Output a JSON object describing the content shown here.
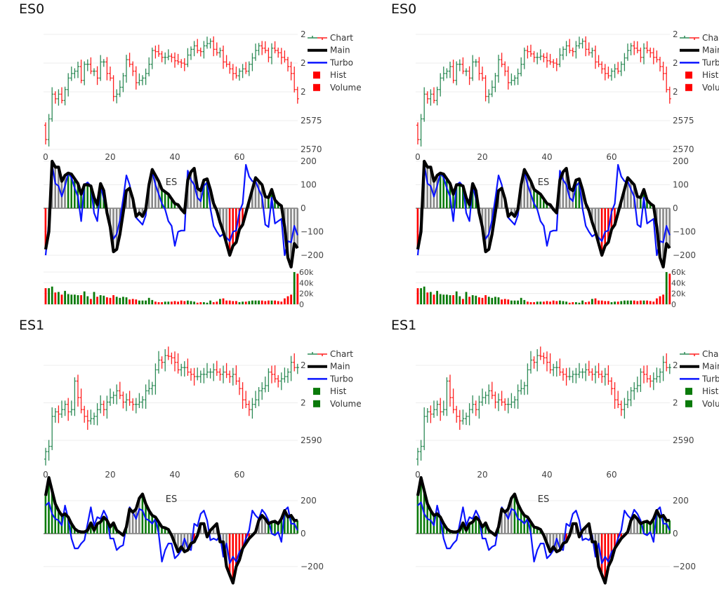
{
  "colors": {
    "up": "#2e8b57",
    "down": "#ff2020",
    "main": "#000000",
    "turbo": "#0a14ff",
    "hist_neutral": "#888888",
    "hist_up": "#0a7a0a",
    "hist_down": "#ff0000",
    "grid": "#eeeeee"
  },
  "charts": [
    {
      "title": "ES0",
      "annotation": "ES",
      "legend": [
        {
          "label": "Chart",
          "icon": "ohlc"
        },
        {
          "label": "Main",
          "icon": "line-black"
        },
        {
          "label": "Turbo",
          "icon": "line-blue"
        },
        {
          "label": "Hist",
          "icon": "square",
          "color": "#ff0000"
        },
        {
          "label": "Volume",
          "icon": "square",
          "color": "#ff0000"
        }
      ],
      "x_ticks": [
        "0",
        "20",
        "40",
        "60"
      ],
      "price": {
        "ylim": [
          2570,
          2590
        ],
        "ticks": [
          {
            "value": 2570,
            "label": "2570"
          },
          {
            "value": 2575,
            "label": "2575"
          },
          {
            "value": 2580,
            "label": "2"
          },
          {
            "value": 2585,
            "label": "2"
          },
          {
            "value": 2590,
            "label": "2"
          }
        ],
        "close": [
          2571.7,
          2575.3,
          2579.6,
          2578.8,
          2579.6,
          2578.5,
          2580.4,
          2582.4,
          2583.2,
          2583.6,
          2584.4,
          2582,
          2584.8,
          2584.8,
          2583.6,
          2583.6,
          2582.4,
          2585.2,
          2585.2,
          2583.2,
          2582.4,
          2579.2,
          2579.6,
          2580.8,
          2582.8,
          2585.6,
          2584.8,
          2583.6,
          2581.6,
          2582,
          2582.4,
          2583.2,
          2584.8,
          2587.2,
          2587,
          2586.6,
          2586,
          2586,
          2586.2,
          2586,
          2585.4,
          2585.2,
          2585,
          2584.8,
          2586.4,
          2587.4,
          2588,
          2587.2,
          2587,
          2588,
          2588.4,
          2588.8,
          2587.4,
          2586.8,
          2587.2,
          2585.2,
          2584.8,
          2584,
          2583.2,
          2582.8,
          2583.6,
          2584,
          2583.6,
          2584.8,
          2585.9,
          2587.2,
          2588,
          2587.6,
          2587.2,
          2586,
          2587.6,
          2587.2,
          2586.8,
          2586,
          2585.6,
          2584.4,
          2583.2,
          2580.4,
          2578.8
        ]
      },
      "oscillator": {
        "ylim": [
          -260,
          205
        ],
        "ticks": [
          {
            "value": 200,
            "label": "200"
          },
          {
            "value": 100,
            "label": "100"
          },
          {
            "value": 0,
            "label": "0"
          },
          {
            "value": -100,
            "label": "−100"
          },
          {
            "value": -200,
            "label": "−200"
          }
        ],
        "main": [
          -175,
          -100,
          200,
          175,
          175,
          115,
          140,
          150,
          145,
          125,
          105,
          60,
          100,
          100,
          95,
          45,
          15,
          105,
          75,
          -20,
          -80,
          -185,
          -175,
          -110,
          -20,
          75,
          85,
          40,
          -35,
          -20,
          -35,
          -5,
          100,
          165,
          140,
          115,
          80,
          70,
          60,
          40,
          20,
          15,
          -5,
          -20,
          120,
          155,
          170,
          85,
          75,
          120,
          125,
          80,
          20,
          -10,
          -60,
          -100,
          -150,
          -200,
          -160,
          -145,
          -90,
          -70,
          -20,
          30,
          80,
          130,
          115,
          100,
          50,
          45,
          80,
          35,
          20,
          10,
          -80,
          -210,
          -250,
          -150,
          -170
        ],
        "turbo": [
          -200,
          -60,
          185,
          105,
          95,
          50,
          95,
          150,
          130,
          85,
          50,
          -55,
          100,
          110,
          95,
          -20,
          -55,
          95,
          40,
          -20,
          -90,
          -130,
          -110,
          -50,
          40,
          140,
          100,
          30,
          -40,
          -55,
          -70,
          -30,
          100,
          155,
          100,
          60,
          20,
          -5,
          -55,
          -75,
          -160,
          -100,
          -95,
          -95,
          160,
          120,
          100,
          45,
          30,
          95,
          110,
          0,
          -75,
          -100,
          -120,
          -110,
          -125,
          -140,
          -100,
          -95,
          -15,
          20,
          185,
          135,
          115,
          115,
          80,
          50,
          -70,
          -80,
          45,
          -65,
          -55,
          -45,
          -200,
          -140,
          -145,
          -75,
          -115
        ],
        "hist_colors": [
          {
            "from": 0,
            "to": 0,
            "color": "red"
          },
          {
            "from": 1,
            "to": 6,
            "color": "gray"
          },
          {
            "from": 7,
            "to": 18,
            "color": "green"
          },
          {
            "from": 19,
            "to": 35,
            "color": "gray"
          },
          {
            "from": 36,
            "to": 40,
            "color": "green"
          },
          {
            "from": 41,
            "to": 48,
            "color": "gray"
          },
          {
            "from": 49,
            "to": 50,
            "color": "green"
          },
          {
            "from": 51,
            "to": 56,
            "color": "gray"
          },
          {
            "from": 57,
            "to": 61,
            "color": "red"
          },
          {
            "from": 62,
            "to": 68,
            "color": "gray"
          },
          {
            "from": 69,
            "to": 72,
            "color": "green"
          },
          {
            "from": 73,
            "to": 78,
            "color": "gray"
          }
        ]
      },
      "volume": {
        "ylim": [
          0,
          60
        ],
        "ticks": [
          {
            "value": 60,
            "label": "60k"
          },
          {
            "value": 40,
            "label": "40k"
          },
          {
            "value": 20,
            "label": "20k"
          },
          {
            "value": 0,
            "label": "0"
          }
        ],
        "values_k": [
          30,
          30,
          33,
          22,
          23,
          18,
          25,
          19,
          18,
          18,
          17,
          17,
          24,
          15,
          10,
          23,
          14,
          17,
          16,
          13,
          12,
          17,
          14,
          12,
          14,
          13,
          9,
          10,
          9,
          7,
          7,
          7,
          12,
          8,
          5,
          4,
          4,
          5,
          5,
          5,
          6,
          5,
          7,
          6,
          7,
          6,
          5,
          3,
          4,
          4,
          3,
          7,
          4,
          5,
          10,
          11,
          7,
          7,
          6,
          6,
          4,
          5,
          5,
          6,
          7,
          7,
          7,
          7,
          6,
          7,
          7,
          7,
          6,
          5,
          11,
          15,
          18,
          60,
          57
        ]
      }
    },
    {
      "title": "ES1",
      "annotation": "ES",
      "legend": [
        {
          "label": "Chart",
          "icon": "ohlc"
        },
        {
          "label": "Main",
          "icon": "line-black"
        },
        {
          "label": "Turbo",
          "icon": "line-blue"
        },
        {
          "label": "Hist",
          "icon": "square",
          "color": "#0a7a0a"
        },
        {
          "label": "Volume",
          "icon": "square",
          "color": "#0a7a0a"
        }
      ],
      "x_ticks": [
        "0",
        "20",
        "40",
        "60"
      ],
      "price": {
        "ylim": [
          2587,
          2602
        ],
        "ticks": [
          {
            "value": 2590,
            "label": "2590"
          },
          {
            "value": 2595,
            "label": "2"
          },
          {
            "value": 2600,
            "label": "2"
          }
        ],
        "close": [
          2588.5,
          2589.2,
          2593.2,
          2593.8,
          2593.5,
          2594.1,
          2594.8,
          2593.8,
          2594.1,
          2597.9,
          2595.7,
          2594.1,
          2593.2,
          2592.6,
          2592.9,
          2593.2,
          2594.1,
          2594.8,
          2594.1,
          2595.1,
          2595.7,
          2596,
          2596.6,
          2596,
          2595.1,
          2595.4,
          2595.1,
          2594.8,
          2594.8,
          2595.1,
          2595.4,
          2596.6,
          2596.9,
          2597.3,
          2599.4,
          2600.7,
          2600.4,
          2601.3,
          2601.2,
          2601,
          2600.4,
          2599.4,
          2599.7,
          2599.7,
          2599.1,
          2598.8,
          2598.5,
          2598.5,
          2598.8,
          2598.8,
          2599.1,
          2599.1,
          2599.4,
          2599.1,
          2598.8,
          2599.1,
          2598.8,
          2598.5,
          2598.8,
          2597.9,
          2596.9,
          2595.4,
          2594.8,
          2594.1,
          2594.8,
          2595.4,
          2596.6,
          2596.9,
          2597.3,
          2599.1,
          2598.8,
          2598.2,
          2597.9,
          2598.2,
          2598.5,
          2599.1,
          2600.4,
          2599.7,
          2599.7
        ]
      },
      "oscillator": {
        "ylim": [
          -310,
          345
        ],
        "ticks": [
          {
            "value": 200,
            "label": "200"
          },
          {
            "value": 0,
            "label": "0"
          },
          {
            "value": -200,
            "label": "−200"
          }
        ],
        "main": [
          230,
          340,
          260,
          180,
          140,
          110,
          120,
          100,
          60,
          30,
          15,
          10,
          10,
          20,
          65,
          20,
          60,
          70,
          100,
          80,
          40,
          65,
          20,
          5,
          -10,
          40,
          150,
          130,
          150,
          215,
          240,
          180,
          140,
          110,
          100,
          70,
          40,
          35,
          25,
          -10,
          -60,
          -110,
          -80,
          -110,
          -100,
          -60,
          -50,
          -10,
          60,
          60,
          -20,
          20,
          40,
          60,
          -50,
          -50,
          -200,
          -250,
          -300,
          -200,
          -160,
          -90,
          -60,
          -30,
          -10,
          10,
          80,
          110,
          90,
          60,
          70,
          75,
          60,
          90,
          140,
          100,
          110,
          80,
          80
        ],
        "turbo": [
          170,
          190,
          120,
          90,
          80,
          50,
          170,
          90,
          -30,
          -90,
          -90,
          -60,
          -40,
          60,
          160,
          50,
          100,
          90,
          140,
          100,
          -30,
          -30,
          -100,
          -80,
          -70,
          50,
          160,
          130,
          90,
          150,
          140,
          90,
          80,
          60,
          90,
          0,
          -170,
          -100,
          -60,
          -60,
          -150,
          -130,
          -100,
          -30,
          -90,
          -100,
          60,
          45,
          120,
          140,
          80,
          -40,
          -30,
          -40,
          -10,
          -140,
          -60,
          -180,
          -140,
          -170,
          -110,
          -90,
          -30,
          20,
          140,
          110,
          90,
          145,
          120,
          80,
          0,
          -10,
          10,
          -50,
          140,
          160,
          60,
          60,
          20
        ],
        "hist_colors": [
          {
            "from": 0,
            "to": 25,
            "color": "green"
          },
          {
            "from": 26,
            "to": 29,
            "color": "gray"
          },
          {
            "from": 30,
            "to": 38,
            "color": "green"
          },
          {
            "from": 39,
            "to": 45,
            "color": "gray"
          },
          {
            "from": 46,
            "to": 47,
            "color": "red"
          },
          {
            "from": 48,
            "to": 56,
            "color": "gray"
          },
          {
            "from": 57,
            "to": 63,
            "color": "red"
          },
          {
            "from": 64,
            "to": 68,
            "color": "gray"
          },
          {
            "from": 69,
            "to": 78,
            "color": "green"
          }
        ]
      }
    }
  ]
}
